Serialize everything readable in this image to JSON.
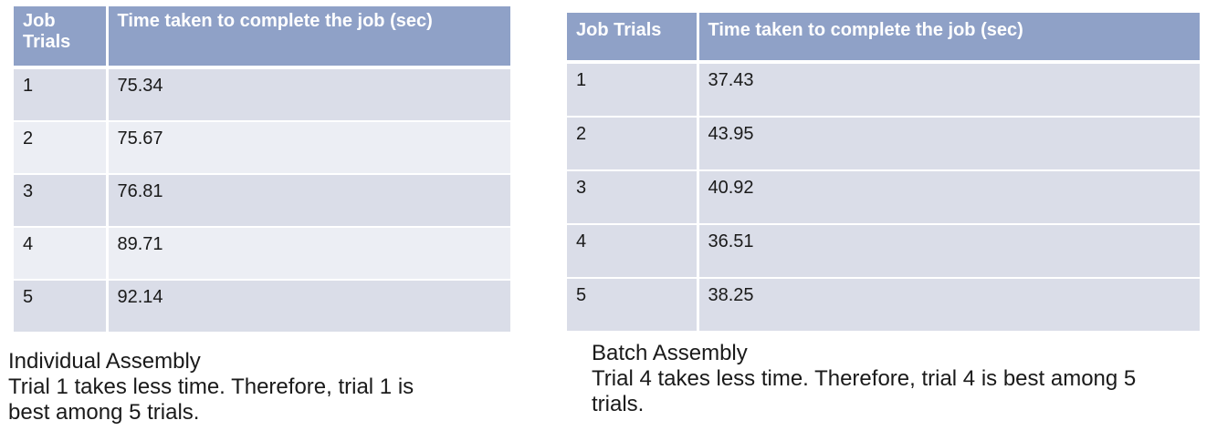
{
  "individual": {
    "headers": [
      "Job Trials",
      "Time taken to complete the job (sec)"
    ],
    "rows": [
      {
        "trial": "1",
        "time": "75.34"
      },
      {
        "trial": "2",
        "time": "75.67"
      },
      {
        "trial": "3",
        "time": "76.81"
      },
      {
        "trial": "4",
        "time": "89.71"
      },
      {
        "trial": "5",
        "time": "92.14"
      }
    ],
    "title": "Individual Assembly",
    "note_line1": "Trial 1 takes less time. Therefore, trial 1 is",
    "note_line2": "best among 5 trials."
  },
  "batch": {
    "headers": [
      "Job Trials",
      "Time taken to complete the job (sec)"
    ],
    "rows": [
      {
        "trial": "1",
        "time": "37.43"
      },
      {
        "trial": "2",
        "time": "43.95"
      },
      {
        "trial": "3",
        "time": "40.92"
      },
      {
        "trial": "4",
        "time": "36.51"
      },
      {
        "trial": "5",
        "time": "38.25"
      }
    ],
    "title": "Batch Assembly",
    "note_line1": "Trial 4 takes less time. Therefore, trial 4 is best among 5",
    "note_line2": "trials."
  },
  "colors": {
    "header_bg": "#8fa1c7",
    "row_odd_bg": "#dadde8",
    "row_even_bg": "#eceef4"
  }
}
